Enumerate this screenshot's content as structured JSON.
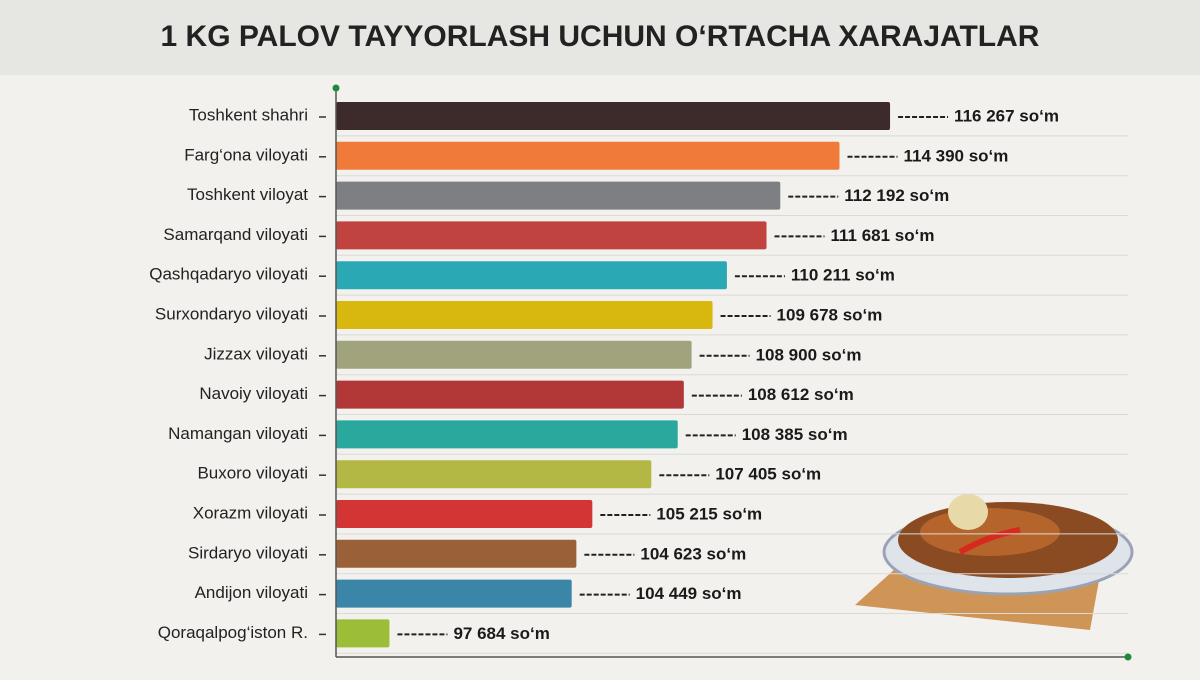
{
  "chart_data": {
    "type": "bar",
    "orientation": "horizontal",
    "title": "1 KG PALOV TAYYORLASH UCHUN O‘RTACHA XARAJATLAR",
    "categories": [
      "Toshkent shahri",
      "Farg‘ona viloyati",
      "Toshkent viloyat",
      "Samarqand viloyati",
      "Qashqadaryo viloyati",
      "Surxondaryo viloyati",
      "Jizzax viloyati",
      "Navoiy viloyati",
      "Namangan viloyati",
      "Buxoro viloyati",
      "Xorazm viloyati",
      "Sirdaryo viloyati",
      "Andijon viloyati",
      "Qoraqalpog‘iston R."
    ],
    "values": [
      116267,
      114390,
      112192,
      111681,
      110211,
      109678,
      108900,
      108612,
      108385,
      107405,
      105215,
      104623,
      104449,
      97684
    ],
    "value_labels": [
      "116 267 so‘m",
      "114 390 so‘m",
      "112 192 so‘m",
      "111 681 so‘m",
      "110 211 so‘m",
      "109 678 so‘m",
      "108 900 so‘m",
      "108 612 so‘m",
      "108 385 so‘m",
      "107 405 so‘m",
      "105 215 so‘m",
      "104 623 so‘m",
      "104 449 so‘m",
      "97 684 so‘m"
    ],
    "colors": [
      "#3d2b2b",
      "#f07a3a",
      "#7d7f82",
      "#c0433f",
      "#2aa9b5",
      "#d8b80e",
      "#a1a37c",
      "#b23838",
      "#2aa89e",
      "#b3b845",
      "#d33535",
      "#9a6038",
      "#3b86a8",
      "#9bbd38"
    ],
    "xlim": [
      95700,
      125100
    ]
  }
}
